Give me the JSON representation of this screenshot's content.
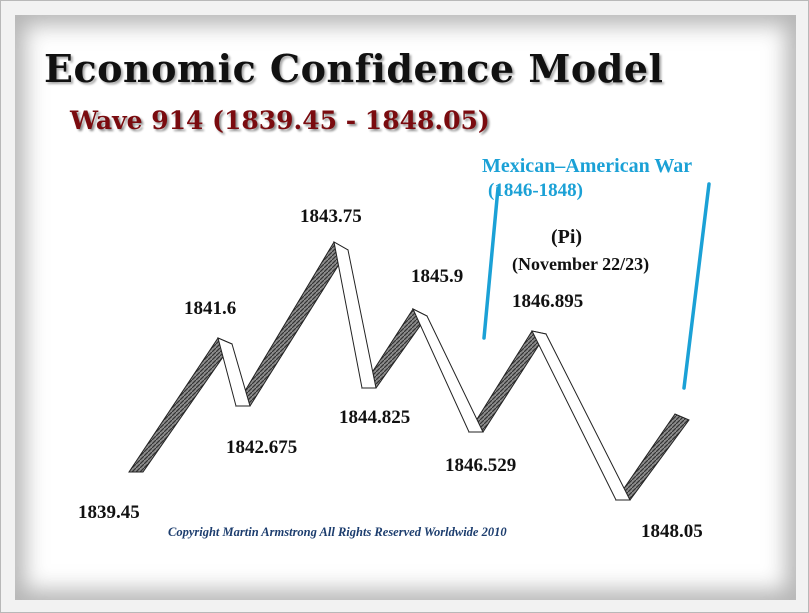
{
  "title": "Economic Confidence Model",
  "subtitle": "Wave  914 (1839.45 - 1848.05)",
  "event": {
    "name": "Mexican–American War",
    "years": "(1846-1848)",
    "pi": "(Pi)",
    "pi_date": "(November 22/23)"
  },
  "turning_points": [
    "1839.45",
    "1841.6",
    "1842.675",
    "1843.75",
    "1844.825",
    "1845.9",
    "1846.529",
    "1846.895",
    "1848.05"
  ],
  "copyright": "Copyright Martin Armstrong All Rights Reserved Worldwide 2010",
  "colors": {
    "title": "#111111",
    "subtitle": "#7a0b0f",
    "event": "#1ba1d6",
    "copyright": "#1c3d6e",
    "ribbon_shade": "#707070"
  }
}
